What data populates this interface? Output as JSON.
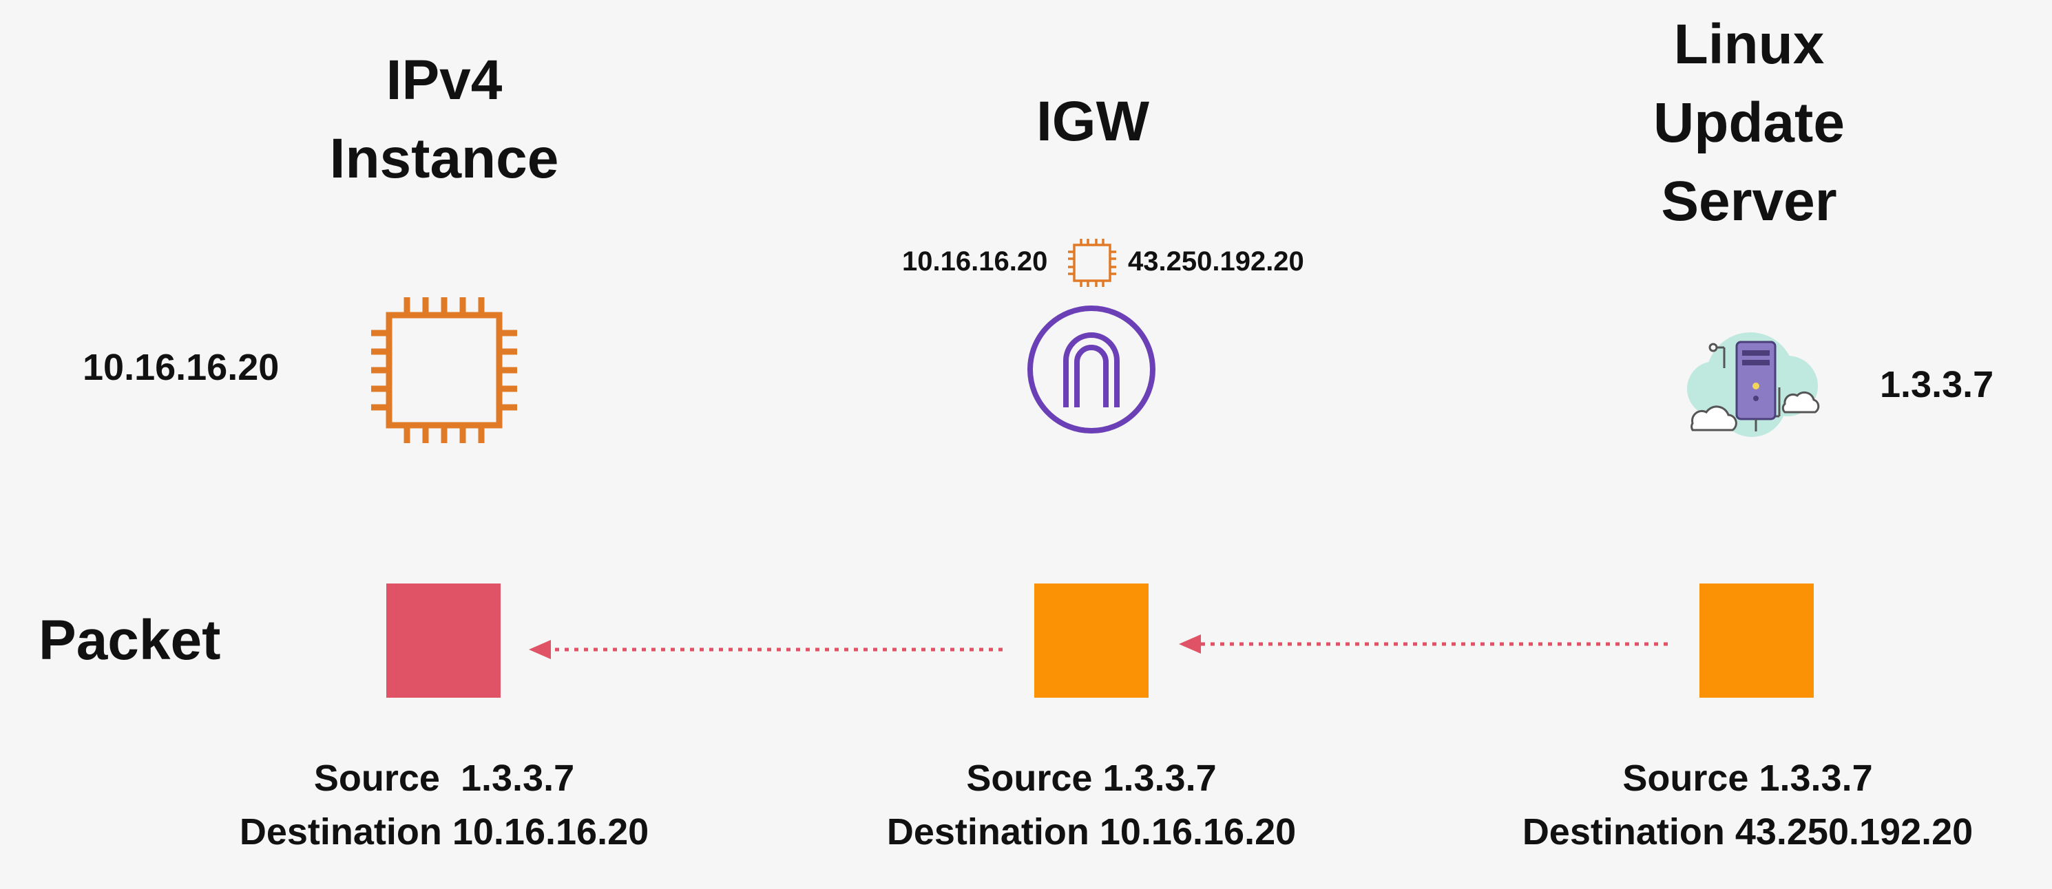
{
  "columns": {
    "instance": {
      "title_line1": "IPv4",
      "title_line2": "Instance",
      "ip": "10.16.16.20",
      "icon": "ec2-instance-chip-icon",
      "packet_color": "#e05265",
      "caption_source": "Source  1.3.3.7",
      "caption_destination": "Destination 10.16.16.20"
    },
    "igw": {
      "title": "IGW",
      "private_ip": "10.16.16.20",
      "public_ip": "43.250.192.20",
      "icon": "internet-gateway-icon",
      "mapping_icon": "chip-icon",
      "packet_color": "#fb9205",
      "caption_source": "Source 1.3.3.7",
      "caption_destination": "Destination 10.16.16.20"
    },
    "server": {
      "title_line1": "Linux",
      "title_line2": "Update",
      "title_line3": "Server",
      "ip": "1.3.3.7",
      "icon": "cloud-server-icon",
      "packet_color": "#fb9205",
      "caption_source": "Source 1.3.3.7",
      "caption_destination": "Destination 43.250.192.20"
    }
  },
  "packet_row_label": "Packet",
  "colors": {
    "chip_orange": "#e07a26",
    "igw_purple": "#6b40b7",
    "arrow_red": "#e05265"
  }
}
